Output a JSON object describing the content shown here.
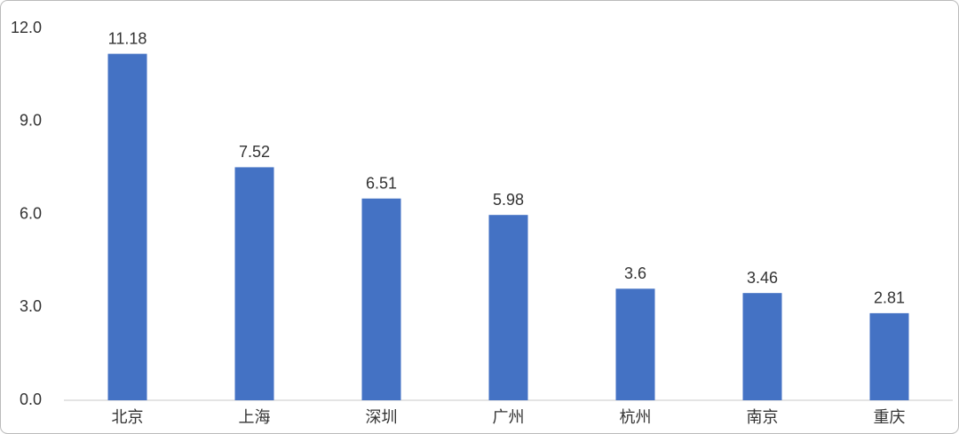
{
  "chart_data": {
    "type": "bar",
    "categories": [
      "北京",
      "上海",
      "深圳",
      "广州",
      "杭州",
      "南京",
      "重庆"
    ],
    "values": [
      11.18,
      7.52,
      6.51,
      5.98,
      3.6,
      3.46,
      2.81
    ],
    "color": "#4472c4",
    "ylim": [
      0,
      12
    ],
    "yticks": [
      {
        "value": 0,
        "label": "0.0"
      },
      {
        "value": 3,
        "label": "3.0"
      },
      {
        "value": 6,
        "label": "6.0"
      },
      {
        "value": 9,
        "label": "9.0"
      },
      {
        "value": 12,
        "label": "12.0"
      }
    ],
    "grid": false
  }
}
